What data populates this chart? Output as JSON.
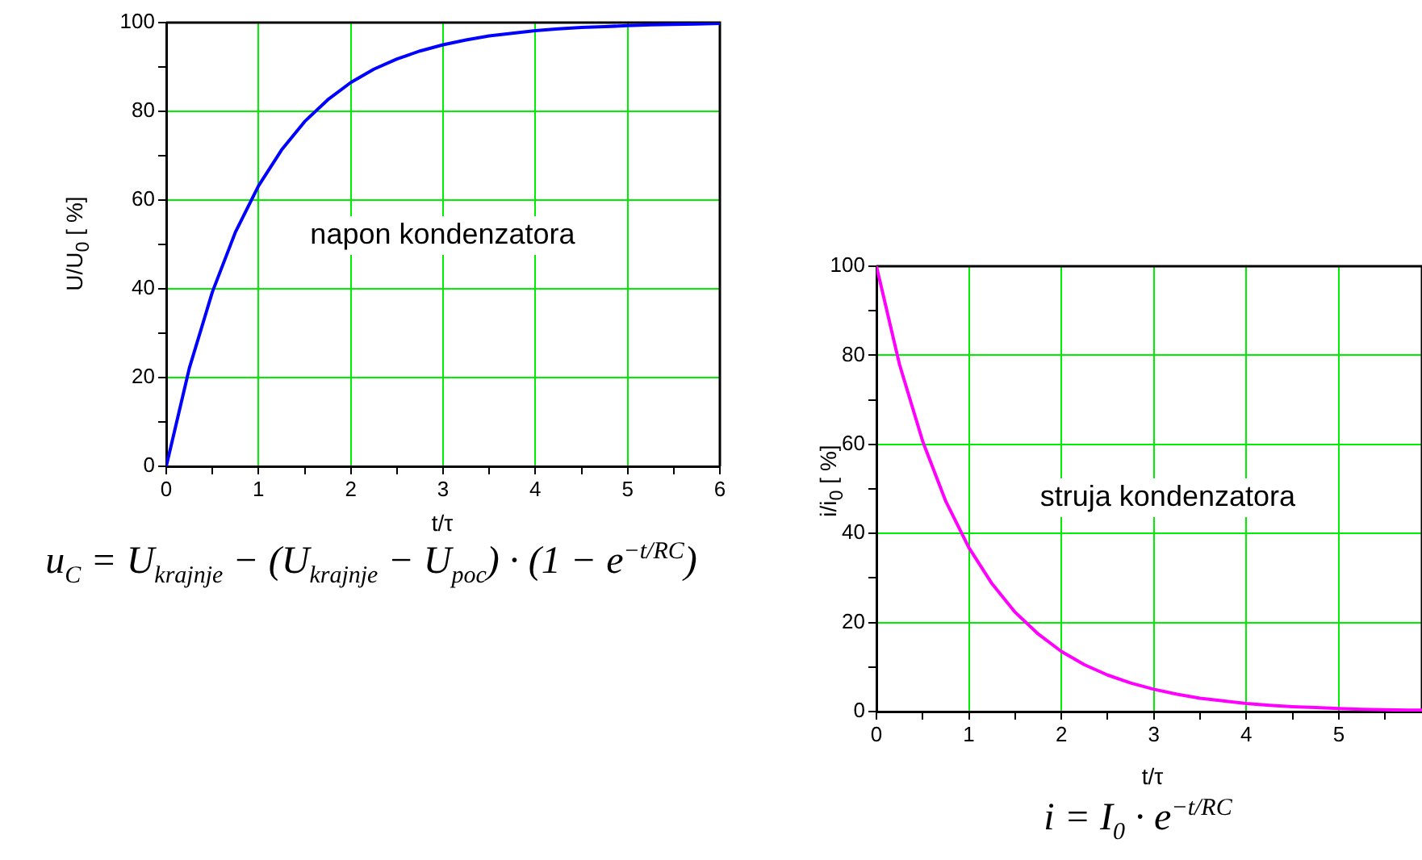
{
  "chart_data": [
    {
      "type": "line",
      "ylabel": "U/U$_{0}$ [ %]",
      "xlabel": "t/τ",
      "annotations": [
        "u$_{C}$ = U$_{krajnje}$ − (U$_{krajnje}$ − U$_{poc}$) · (1 − e$^{−t/RC}$)"
      ],
      "x": [
        0,
        0.25,
        0.5,
        0.75,
        1,
        1.25,
        1.5,
        1.75,
        2,
        2.25,
        2.5,
        2.75,
        3,
        3.25,
        3.5,
        3.75,
        4,
        4.25,
        4.5,
        4.75,
        5,
        5.25,
        5.5,
        5.75,
        6
      ],
      "series": [
        {
          "name": "napon kondenzatora",
          "color": "#0000ff",
          "values": [
            0,
            22.1,
            39.3,
            52.8,
            63.2,
            71.3,
            77.7,
            82.6,
            86.5,
            89.5,
            91.8,
            93.6,
            95.0,
            96.1,
            97.0,
            97.6,
            98.2,
            98.6,
            98.9,
            99.1,
            99.3,
            99.5,
            99.6,
            99.7,
            99.8
          ]
        }
      ],
      "xlim": [
        0,
        6
      ],
      "ylim": [
        0,
        100
      ],
      "xticks": [
        0,
        {
          "value": 0.5,
          "label": null
        },
        1,
        {
          "value": 1.5,
          "label": null
        },
        2,
        {
          "value": 2.5,
          "label": null
        },
        3,
        {
          "value": 3.5,
          "label": null
        },
        4,
        {
          "value": 4.5,
          "label": null
        },
        5,
        {
          "value": 5.5,
          "label": null
        },
        6
      ],
      "yticks": [
        0,
        {
          "value": 10,
          "label": null
        },
        20,
        {
          "value": 30,
          "label": null
        },
        40,
        {
          "value": 50,
          "label": null
        },
        60,
        {
          "value": 70,
          "label": null
        },
        80,
        {
          "value": 90,
          "label": null
        },
        100
      ],
      "grid": true,
      "marker": "none",
      "line_style": "solid"
    },
    {
      "type": "line",
      "ylabel": "i/i$_{0}$ [ %]",
      "xlabel": "t/τ",
      "annotations": [
        "i = I$_{0}$ · e$^{−t/RC}$"
      ],
      "x": [
        0,
        0.25,
        0.5,
        0.75,
        1,
        1.25,
        1.5,
        1.75,
        2,
        2.25,
        2.5,
        2.75,
        3,
        3.25,
        3.5,
        3.75,
        4,
        4.25,
        4.5,
        4.75,
        5,
        5.25,
        5.5,
        5.75,
        5.9
      ],
      "series": [
        {
          "name": "struja kondenzatora",
          "color": "#ff00ff",
          "values": [
            100,
            77.9,
            60.7,
            47.2,
            36.8,
            28.7,
            22.3,
            17.4,
            13.5,
            10.5,
            8.2,
            6.4,
            5.0,
            3.9,
            3.0,
            2.4,
            1.8,
            1.4,
            1.1,
            0.9,
            0.7,
            0.5,
            0.4,
            0.3,
            0.3
          ]
        }
      ],
      "xlim": [
        0,
        5.9
      ],
      "ylim": [
        0,
        100
      ],
      "xticks": [
        0,
        {
          "value": 0.5,
          "label": null
        },
        1,
        {
          "value": 1.5,
          "label": null
        },
        2,
        {
          "value": 2.5,
          "label": null
        },
        3,
        {
          "value": 3.5,
          "label": null
        },
        4,
        {
          "value": 4.5,
          "label": null
        },
        5,
        {
          "value": 5.5,
          "label": null
        }
      ],
      "yticks": [
        0,
        {
          "value": 10,
          "label": null
        },
        20,
        {
          "value": 30,
          "label": null
        },
        40,
        {
          "value": 50,
          "label": null
        },
        60,
        {
          "value": 70,
          "label": null
        },
        80,
        {
          "value": 90,
          "label": null
        },
        100
      ],
      "grid": true,
      "marker": "none",
      "line_style": "solid"
    }
  ]
}
